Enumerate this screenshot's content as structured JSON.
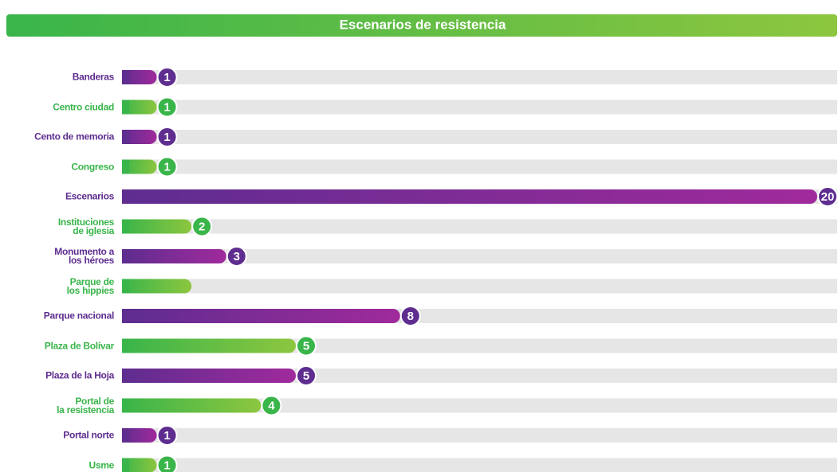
{
  "chart_data": {
    "type": "bar",
    "orientation": "horizontal",
    "title": "Escenarios de resistencia",
    "categories": [
      "Banderas",
      "Centro ciudad",
      "Cento de memoria",
      "Congreso",
      "Escenarios",
      "Instituciones\nde iglesia",
      "Monumento a\nlos héroes",
      "Parque de\nlos hippies",
      "Parque nacional",
      "Plaza de Bolívar",
      "Plaza de la Hoja",
      "Portal de\nla resistencia",
      "Portal norte",
      "Usme"
    ],
    "values": [
      1,
      1,
      1,
      1,
      20,
      2,
      3,
      2,
      8,
      5,
      5,
      4,
      1,
      1
    ],
    "value_labels": [
      "1",
      "1",
      "1",
      "1",
      "20",
      "2",
      "3",
      null,
      "8",
      "5",
      "5",
      "4",
      "1",
      "1"
    ],
    "colors": [
      [
        "#5e2d8f",
        "#a02a9c"
      ],
      [
        "#39b54a",
        "#8dc63f"
      ]
    ],
    "title_colors": [
      "#39b54a",
      "#8dc63f"
    ],
    "track_color": "#e6e6e6",
    "xlim": [
      0,
      20
    ]
  }
}
